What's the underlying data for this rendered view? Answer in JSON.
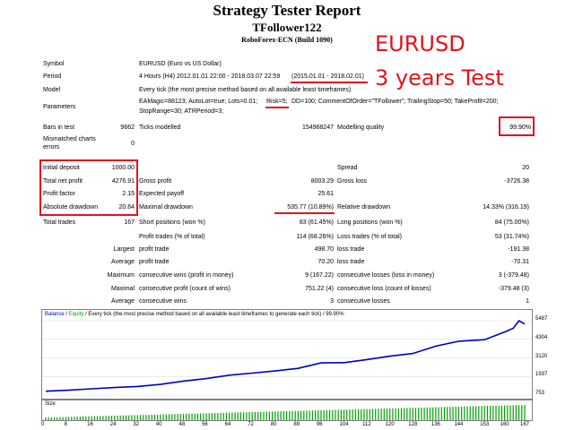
{
  "report": {
    "title": "Strategy Tester Report",
    "ea_name": "TFollower122",
    "server": "RoboForex-ECN (Build 1090)"
  },
  "annotations": {
    "symbol_note": "EURUSD",
    "test_note": "3 years Test"
  },
  "info": {
    "symbol_label": "Symbol",
    "symbol_value": "EURUSD (Euro vs US Dollar)",
    "period_label": "Period",
    "period_value_prefix": "4 Hours (H4) 2012.01.01 22:00 - 2018.03.07 22:59",
    "period_value_range": "(2015.01.01 - 2018.02.01)",
    "model_label": "Model",
    "model_value": "Every tick (the most precise method based on all available least timeframes)",
    "params_label": "Parameters",
    "params_line1_a": "EAMagic=88123; AutoLot=true; Lots=0.01;",
    "params_line1_b": "Risk=5;",
    "params_line1_c": "DD=100; CommentOfOrder=\"TFollower\"; TrailingStop=50; TakeProfit=200;",
    "params_line2": "StopRange=30; ATRPeriod=3;"
  },
  "quality": {
    "bars_label": "Bars in test",
    "bars_value": "9662",
    "ticks_label": "Ticks modelled",
    "ticks_value": "154968247",
    "modelling_label": "Modelling quality",
    "modelling_value": "99.90%",
    "mismatch_label_1": "Mismatched charts",
    "mismatch_label_2": "errors",
    "mismatch_value": "0"
  },
  "results": {
    "initial_deposit_label": "Initial deposit",
    "initial_deposit_value": "1000.00",
    "spread_label": "Spread",
    "spread_value": "20",
    "net_profit_label": "Total net profit",
    "net_profit_value": "4276.91",
    "gross_profit_label": "Gross profit",
    "gross_profit_value": "8003.29",
    "gross_loss_label": "Gross loss",
    "gross_loss_value": "-3726.38",
    "profit_factor_label": "Profit factor",
    "profit_factor_value": "2.15",
    "expected_payoff_label": "Expected payoff",
    "expected_payoff_value": "25.61",
    "abs_dd_label": "Absolute drawdown",
    "abs_dd_value": "20.64",
    "max_dd_label": "Maximal drawdown",
    "max_dd_value": "535.77 (10.89%)",
    "rel_dd_label": "Relative drawdown",
    "rel_dd_value": "14.33% (316.19)"
  },
  "trades": {
    "total_label": "Total trades",
    "total_value": "167",
    "short_label": "Short positions (won %)",
    "short_value": "83 (61.45%)",
    "long_label": "Long positions (won %)",
    "long_value": "84 (75.00%)",
    "profit_trades_label": "Profit trades (% of total)",
    "profit_trades_value": "114 (68.26%)",
    "loss_trades_label": "Loss trades (% of total)",
    "loss_trades_value": "53 (31.74%)",
    "largest_label": "Largest",
    "largest_profit_label": "profit trade",
    "largest_profit_value": "498.70",
    "largest_loss_label": "loss trade",
    "largest_loss_value": "-191.38",
    "average_label": "Average",
    "average_profit_label": "profit trade",
    "average_profit_value": "70.20",
    "average_loss_label": "loss trade",
    "average_loss_value": "-70.31",
    "maximum_label": "Maximum",
    "max_cons_wins_label": "consecutive wins (profit in money)",
    "max_cons_wins_value": "9 (167.22)",
    "max_cons_losses_label": "consecutive losses (loss in money)",
    "max_cons_losses_value": "3 (-379.48)",
    "maximal_label": "Maximal",
    "maximal_cons_profit_label": "consecutive profit (count of wins)",
    "maximal_cons_profit_value": "751.22 (4)",
    "maximal_cons_loss_label": "consecutive loss (count of losses)",
    "maximal_cons_loss_value": "-379.48 (3)",
    "average2_label": "Average",
    "avg_cons_wins_label": "consecutive wins",
    "avg_cons_wins_value": "3",
    "avg_cons_losses_label": "consecutive losses",
    "avg_cons_losses_value": "1"
  },
  "chart_data": {
    "type": "line",
    "legend_balance": "Balance",
    "legend_sep": "/",
    "legend_equity": "Equity",
    "legend_rest": "/ Every tick (the most precise method based on all available least timeframes to generate each tick) / 99.90%",
    "yticks": [
      "5487",
      "4304",
      "3120",
      "1937",
      "753"
    ],
    "ytick_values": [
      5487,
      4304,
      3120,
      1937,
      753
    ],
    "ylim": [
      753,
      5487
    ],
    "size_label": "Size",
    "xticks": [
      "0",
      "8",
      "16",
      "24",
      "32",
      "40",
      "48",
      "56",
      "64",
      "72",
      "80",
      "88",
      "96",
      "104",
      "112",
      "120",
      "128",
      "136",
      "144",
      "153",
      "160",
      "167"
    ],
    "xlim": [
      0,
      167
    ],
    "series": [
      {
        "name": "Balance",
        "color": "#0000c0",
        "x": [
          0,
          8,
          16,
          24,
          32,
          40,
          48,
          56,
          64,
          72,
          80,
          88,
          96,
          104,
          112,
          120,
          128,
          136,
          144,
          153,
          160,
          163,
          165,
          167
        ],
        "values": [
          1000,
          1060,
          1150,
          1230,
          1300,
          1430,
          1640,
          1800,
          2020,
          2150,
          2290,
          2450,
          2800,
          2820,
          3010,
          3230,
          3400,
          3870,
          4180,
          4280,
          4770,
          5000,
          5480,
          5277
        ]
      }
    ],
    "size_bar_color": "#00a000"
  }
}
